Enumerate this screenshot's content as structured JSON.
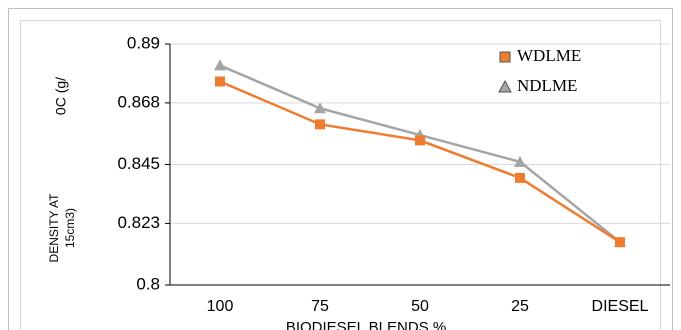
{
  "chart_data": {
    "type": "line",
    "categories": [
      "100",
      "75",
      "50",
      "25",
      "DIESEL"
    ],
    "series": [
      {
        "name": "WDLME",
        "color": "#ed7d31",
        "marker": "square",
        "values": [
          0.876,
          0.86,
          0.854,
          0.84,
          0.816
        ]
      },
      {
        "name": "NDLME",
        "color": "#a5a5a5",
        "marker": "triangle",
        "values": [
          0.882,
          0.866,
          0.856,
          0.846,
          0.816
        ]
      }
    ],
    "ylim": [
      0.8,
      0.89
    ],
    "yticks": [
      0.8,
      0.823,
      0.845,
      0.868,
      0.89
    ],
    "grid": true,
    "y_label_parts": [
      "0C (g/",
      "DENSITY AT",
      "15cm3)"
    ],
    "x_label": "BIODIESEL BLENDS %",
    "legend_position": "upper right"
  }
}
